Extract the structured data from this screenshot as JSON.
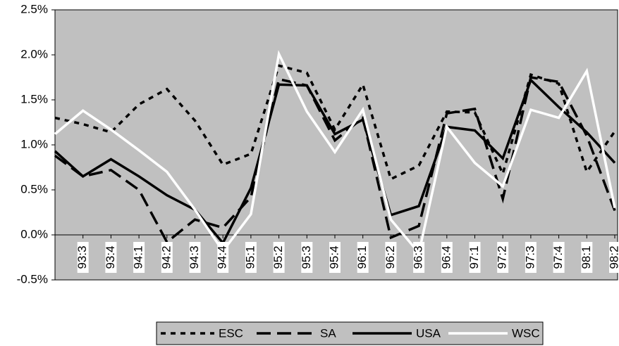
{
  "chart_data": {
    "type": "line",
    "categories": [
      null,
      "93:3",
      "93:4",
      "94:1",
      "94:2",
      "94:3",
      "94:4",
      "95:1",
      "95:2",
      "95:3",
      "95:4",
      "96:1",
      "96:2",
      "96:3",
      "96:4",
      "97:1",
      "97:2",
      "97:3",
      "97:4",
      "98:1",
      "98:2"
    ],
    "series": [
      {
        "name": "ESC",
        "color": "#000000",
        "dash": "dotted",
        "values": [
          1.3,
          1.23,
          1.14,
          1.45,
          1.62,
          1.27,
          0.78,
          0.9,
          1.88,
          1.8,
          1.17,
          1.67,
          0.62,
          0.77,
          1.37,
          1.36,
          0.68,
          1.78,
          1.68,
          0.7,
          1.15
        ]
      },
      {
        "name": "SA",
        "color": "#000000",
        "dash": "dashed",
        "values": [
          0.88,
          0.65,
          0.72,
          0.5,
          -0.08,
          0.17,
          0.08,
          0.42,
          1.73,
          1.66,
          1.05,
          1.3,
          -0.03,
          0.1,
          1.35,
          1.4,
          0.4,
          1.75,
          1.7,
          1.1,
          0.27
        ]
      },
      {
        "name": "USA",
        "color": "#000000",
        "dash": "solid",
        "values": [
          0.93,
          0.65,
          0.84,
          0.65,
          0.44,
          0.28,
          -0.09,
          0.52,
          1.67,
          1.66,
          1.12,
          1.28,
          0.22,
          0.32,
          1.2,
          1.16,
          0.85,
          1.72,
          1.42,
          1.14,
          0.8
        ]
      },
      {
        "name": "WSC",
        "color": "#ffffff",
        "dash": "solid",
        "values": [
          1.12,
          1.38,
          1.17,
          0.94,
          0.7,
          0.28,
          -0.18,
          0.23,
          2.01,
          1.37,
          0.92,
          1.39,
          0.17,
          -0.2,
          1.2,
          0.8,
          0.54,
          1.39,
          1.3,
          1.82,
          0.3
        ]
      }
    ],
    "ylim": [
      -0.5,
      2.5
    ],
    "yticks": [
      {
        "value": -0.5,
        "label": "-0.5%"
      },
      {
        "value": 0,
        "label": "0.0%"
      },
      {
        "value": 0.5,
        "label": "0.5%"
      },
      {
        "value": 1,
        "label": "1.0%"
      },
      {
        "value": 1.5,
        "label": "1.5%"
      },
      {
        "value": 2,
        "label": "2.0%"
      },
      {
        "value": 2.5,
        "label": "2.5%"
      }
    ],
    "background": "#c0c0c0",
    "legend": "bottom"
  }
}
